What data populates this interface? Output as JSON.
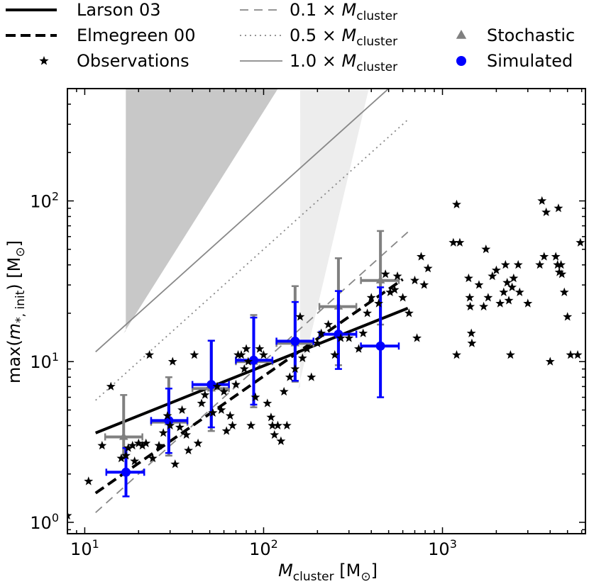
{
  "chart_data": {
    "type": "scatter",
    "title": "",
    "xlabel": "M_cluster [M_⊙]",
    "ylabel": "max(m_*,init) [M_⊙]",
    "xscale": "log",
    "yscale": "log",
    "xlim": [
      8,
      6300
    ],
    "ylim": [
      0.85,
      500
    ],
    "x_ticks": [
      {
        "value": 10,
        "base": "10",
        "exp": "1"
      },
      {
        "value": 100,
        "base": "10",
        "exp": "2"
      },
      {
        "value": 1000,
        "base": "10",
        "exp": "3"
      }
    ],
    "y_ticks": [
      {
        "value": 1,
        "base": "10",
        "exp": "0"
      },
      {
        "value": 10,
        "base": "10",
        "exp": "1"
      },
      {
        "value": 100,
        "base": "10",
        "exp": "2"
      }
    ],
    "legend": {
      "placement": "top",
      "entries": [
        {
          "key": "larson",
          "label": "Larson 03"
        },
        {
          "key": "elmegreen",
          "label": "Elmegreen 00"
        },
        {
          "key": "obs",
          "label": "Observations"
        },
        {
          "key": "f01",
          "label": "0.1 × M",
          "sub": "cluster"
        },
        {
          "key": "f05",
          "label": "0.5 × M",
          "sub": "cluster"
        },
        {
          "key": "f10",
          "label": "1.0 × M",
          "sub": "cluster"
        },
        {
          "key": "stoch",
          "label": "Stochastic"
        },
        {
          "key": "sim",
          "label": "Simulated"
        }
      ]
    },
    "colors": {
      "stochastic": "#808080",
      "simulated": "#0000ff",
      "obs": "#000000",
      "fraction_lines": "#888888"
    },
    "relations": [
      {
        "name": "Larson 03",
        "x": [
          11.5,
          640
        ],
        "y": [
          3.6,
          21.5
        ]
      },
      {
        "name": "Elmegreen 00",
        "x": [
          11.5,
          600
        ],
        "y": [
          1.52,
          32.5
        ]
      }
    ],
    "fraction_lines": [
      {
        "name": "0.1 × M_cluster",
        "fraction": 0.1,
        "x": [
          11.5,
          640
        ]
      },
      {
        "name": "0.5 × M_cluster",
        "fraction": 0.5,
        "x": [
          11.5,
          640
        ]
      },
      {
        "name": "1.0 × M_cluster",
        "fraction": 1.0,
        "x": [
          11.5,
          640
        ]
      }
    ],
    "stochastic_binned": [
      {
        "x": 16.5,
        "y": 3.4,
        "xerr": [
          13.0,
          21.0
        ],
        "yerr": [
          2.5,
          6.2
        ]
      },
      {
        "x": 29.5,
        "y": 4.2,
        "xerr": [
          23.5,
          37.5
        ],
        "yerr": [
          2.6,
          8.0
        ]
      },
      {
        "x": 51,
        "y": 6.8,
        "xerr": [
          40,
          64
        ],
        "yerr": [
          3.7,
          13.5
        ]
      },
      {
        "x": 88,
        "y": 10.0,
        "xerr": [
          70,
          112
        ],
        "yerr": [
          5.2,
          19.5
        ]
      },
      {
        "x": 150,
        "y": 13.0,
        "xerr": [
          118,
          190
        ],
        "yerr": [
          7.5,
          29.5
        ]
      },
      {
        "x": 262,
        "y": 22,
        "xerr": [
          205,
          330
        ],
        "yerr": [
          9.5,
          44
        ]
      },
      {
        "x": 450,
        "y": 32,
        "xerr": [
          350,
          570
        ],
        "yerr": [
          17,
          65
        ]
      }
    ],
    "simulated_binned": [
      {
        "x": 17,
        "y": 2.05,
        "xerr": [
          13.2,
          21.5
        ],
        "yerr": [
          1.45,
          2.9
        ]
      },
      {
        "x": 29.5,
        "y": 4.3,
        "xerr": [
          23.5,
          37.5
        ],
        "yerr": [
          2.7,
          6.8
        ]
      },
      {
        "x": 51,
        "y": 7.2,
        "xerr": [
          40,
          64
        ],
        "yerr": [
          3.9,
          13.5
        ]
      },
      {
        "x": 88,
        "y": 10.2,
        "xerr": [
          70,
          112
        ],
        "yerr": [
          5.4,
          18.8
        ]
      },
      {
        "x": 150,
        "y": 13.4,
        "xerr": [
          118,
          190
        ],
        "yerr": [
          7.6,
          23.5
        ]
      },
      {
        "x": 262,
        "y": 14.8,
        "xerr": [
          205,
          330
        ],
        "yerr": [
          9.0,
          27.5
        ]
      },
      {
        "x": 450,
        "y": 12.5,
        "xerr": [
          350,
          570
        ],
        "yerr": [
          6.0,
          29.0
        ]
      }
    ],
    "observations": [
      [
        8.0,
        1.1
      ],
      [
        10.5,
        1.8
      ],
      [
        12.5,
        3.0
      ],
      [
        14.0,
        7.0
      ],
      [
        16.0,
        2.5
      ],
      [
        17.0,
        2.6
      ],
      [
        17.5,
        2.9
      ],
      [
        18.5,
        3.0
      ],
      [
        19.0,
        2.4
      ],
      [
        20.0,
        3.1
      ],
      [
        21.0,
        3.0
      ],
      [
        22.0,
        3.1
      ],
      [
        23.0,
        11.0
      ],
      [
        24.0,
        2.5
      ],
      [
        26.0,
        3.0
      ],
      [
        27.5,
        3.6
      ],
      [
        29.0,
        4.6
      ],
      [
        30.0,
        4.0
      ],
      [
        31.0,
        10.0
      ],
      [
        32.0,
        2.3
      ],
      [
        34.0,
        3.9
      ],
      [
        35.0,
        5.0
      ],
      [
        37.0,
        3.5
      ],
      [
        38.0,
        2.8
      ],
      [
        41.0,
        11.0
      ],
      [
        43.0,
        3.1
      ],
      [
        45.0,
        5.5
      ],
      [
        47.0,
        6.2
      ],
      [
        52.0,
        4.8
      ],
      [
        55.0,
        7.0
      ],
      [
        58.0,
        5.0
      ],
      [
        60.0,
        6.5
      ],
      [
        62.0,
        3.7
      ],
      [
        65.0,
        4.6
      ],
      [
        67.0,
        4.0
      ],
      [
        70.0,
        7.2
      ],
      [
        72.0,
        11.0
      ],
      [
        75.0,
        11.0
      ],
      [
        78.0,
        9.0
      ],
      [
        80.0,
        12.0
      ],
      [
        82.0,
        10.0
      ],
      [
        85.0,
        4.0
      ],
      [
        90.0,
        6.0
      ],
      [
        95.0,
        12.0
      ],
      [
        100.0,
        11.0
      ],
      [
        105.0,
        5.5
      ],
      [
        110.0,
        4.5
      ],
      [
        112.0,
        4.0
      ],
      [
        115.0,
        3.5
      ],
      [
        120.0,
        4.0
      ],
      [
        125.0,
        3.2
      ],
      [
        130.0,
        6.5
      ],
      [
        135.0,
        4.0
      ],
      [
        140.0,
        8.0
      ],
      [
        150.0,
        9.0
      ],
      [
        160.0,
        19.0
      ],
      [
        165.0,
        10.5
      ],
      [
        175.0,
        12.0
      ],
      [
        185.0,
        8.0
      ],
      [
        200.0,
        13.0
      ],
      [
        210.0,
        15.0
      ],
      [
        230.0,
        17.0
      ],
      [
        250.0,
        11.0
      ],
      [
        270.0,
        14.0
      ],
      [
        300.0,
        14.0
      ],
      [
        340.0,
        12.0
      ],
      [
        360.0,
        15.0
      ],
      [
        380.0,
        20.0
      ],
      [
        400.0,
        25.0
      ],
      [
        440.0,
        23.0
      ],
      [
        480.0,
        35.0
      ],
      [
        510.0,
        27.0
      ],
      [
        540.0,
        28.0
      ],
      [
        560.0,
        34.0
      ],
      [
        600.0,
        25.0
      ],
      [
        650.0,
        20.0
      ],
      [
        700.0,
        32.0
      ],
      [
        720.0,
        14.0
      ],
      [
        760.0,
        45.0
      ],
      [
        790.0,
        30.0
      ],
      [
        830.0,
        38.0
      ],
      [
        1150.0,
        55.0
      ],
      [
        1200.0,
        95.0
      ],
      [
        1250.0,
        55.0
      ],
      [
        1200.0,
        11.0
      ],
      [
        1400.0,
        33.0
      ],
      [
        1420.0,
        25.0
      ],
      [
        1430.0,
        22.0
      ],
      [
        1450.0,
        15.0
      ],
      [
        1460.0,
        13.0
      ],
      [
        1600.0,
        30.0
      ],
      [
        1700.0,
        22.0
      ],
      [
        1750.0,
        50.0
      ],
      [
        1800.0,
        25.0
      ],
      [
        1900.0,
        34.0
      ],
      [
        2000.0,
        37.0
      ],
      [
        2100.0,
        23.0
      ],
      [
        2200.0,
        27.0
      ],
      [
        2250.0,
        40.0
      ],
      [
        2300.0,
        31.0
      ],
      [
        2350.0,
        24.0
      ],
      [
        2400.0,
        11.0
      ],
      [
        2450.0,
        29.0
      ],
      [
        2500.0,
        33.0
      ],
      [
        2650.0,
        40.0
      ],
      [
        2700.0,
        27.0
      ],
      [
        3000.0,
        23.0
      ],
      [
        3500.0,
        40.0
      ],
      [
        3600.0,
        100.0
      ],
      [
        3700.0,
        45.0
      ],
      [
        3800.0,
        85.0
      ],
      [
        4000.0,
        10.0
      ],
      [
        4300.0,
        45.0
      ],
      [
        4400.0,
        40.0
      ],
      [
        4450.0,
        90.0
      ],
      [
        4500.0,
        36.0
      ],
      [
        4600.0,
        40.0
      ],
      [
        4650.0,
        35.0
      ],
      [
        4800.0,
        27.0
      ],
      [
        5000.0,
        19.0
      ],
      [
        5200.0,
        11.0
      ],
      [
        5700.0,
        11.0
      ],
      [
        5900.0,
        55.0
      ]
    ]
  }
}
